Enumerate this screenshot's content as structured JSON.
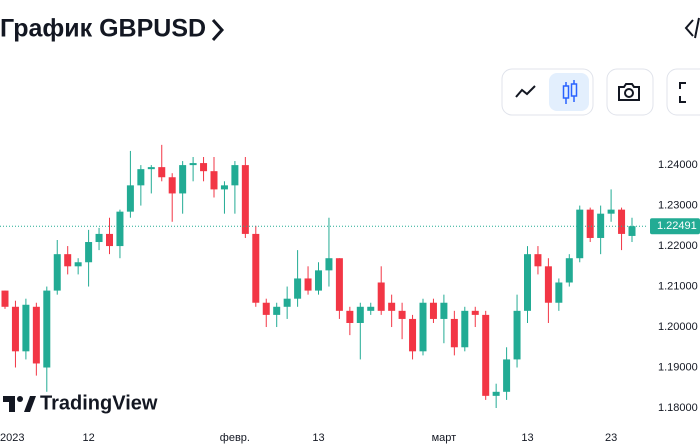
{
  "page": {
    "title": "График GBPUSD",
    "brand": "TradingView"
  },
  "chart_data": {
    "type": "candlestick",
    "categories": [
      "2023",
      null,
      null,
      null,
      null,
      null,
      null,
      null,
      "12",
      null,
      null,
      null,
      null,
      null,
      null,
      null,
      null,
      null,
      null,
      null,
      null,
      null,
      "февр.",
      null,
      null,
      null,
      null,
      null,
      null,
      null,
      "13",
      null,
      null,
      null,
      null,
      null,
      null,
      null,
      null,
      null,
      null,
      null,
      "март",
      null,
      null,
      null,
      null,
      null,
      null,
      null,
      "13",
      null,
      null,
      null,
      null,
      null,
      null,
      null,
      "23",
      null,
      null
    ],
    "open": [
      1.209,
      1.205,
      1.194,
      1.205,
      1.19,
      1.209,
      1.218,
      1.215,
      1.216,
      1.221,
      1.223,
      1.22,
      1.2285,
      1.235,
      1.239,
      1.2395,
      1.237,
      1.233,
      1.24,
      1.2405,
      1.2385,
      1.234,
      1.235,
      1.24,
      1.223,
      1.206,
      1.203,
      1.205,
      1.207,
      1.212,
      1.209,
      1.214,
      1.217,
      1.204,
      1.201,
      1.204,
      1.211,
      1.206,
      1.204,
      1.202,
      1.194,
      1.206,
      1.202,
      1.202,
      1.195,
      1.204,
      1.203,
      1.183,
      1.184,
      1.192,
      1.204,
      1.218,
      1.215,
      1.206,
      1.211,
      1.217,
      1.229,
      1.222,
      1.228,
      1.229,
      1.2225
    ],
    "high": [
      1.209,
      1.2065,
      1.207,
      1.206,
      1.21,
      1.2215,
      1.22,
      1.217,
      1.224,
      1.2245,
      1.227,
      1.229,
      1.2435,
      1.24,
      1.24,
      1.245,
      1.238,
      1.241,
      1.242,
      1.242,
      1.242,
      1.236,
      1.241,
      1.242,
      1.225,
      1.207,
      1.206,
      1.21,
      1.219,
      1.215,
      1.216,
      1.227,
      1.217,
      1.205,
      1.206,
      1.206,
      1.215,
      1.208,
      1.206,
      1.203,
      1.207,
      1.207,
      1.208,
      1.204,
      1.205,
      1.205,
      1.204,
      1.186,
      1.195,
      1.208,
      1.22,
      1.22,
      1.217,
      1.212,
      1.218,
      1.23,
      1.2295,
      1.23,
      1.234,
      1.2295,
      1.227
    ],
    "low": [
      1.2045,
      1.19,
      1.192,
      1.188,
      1.184,
      1.208,
      1.213,
      1.213,
      1.21,
      1.219,
      1.218,
      1.217,
      1.227,
      1.23,
      1.233,
      1.236,
      1.226,
      1.228,
      1.236,
      1.236,
      1.232,
      1.228,
      1.228,
      1.222,
      1.205,
      1.2,
      1.2,
      1.202,
      1.205,
      1.208,
      1.208,
      1.21,
      1.202,
      1.198,
      1.192,
      1.203,
      1.203,
      1.2,
      1.197,
      1.192,
      1.193,
      1.201,
      1.196,
      1.193,
      1.194,
      1.2,
      1.182,
      1.18,
      1.182,
      1.19,
      1.201,
      1.213,
      1.201,
      1.204,
      1.21,
      1.216,
      1.221,
      1.218,
      1.226,
      1.219,
      1.221
    ],
    "close": [
      1.205,
      1.194,
      1.2055,
      1.191,
      1.209,
      1.218,
      1.215,
      1.216,
      1.221,
      1.223,
      1.22,
      1.2285,
      1.235,
      1.239,
      1.2395,
      1.237,
      1.233,
      1.24,
      1.2405,
      1.2385,
      1.234,
      1.235,
      1.24,
      1.223,
      1.206,
      1.203,
      1.205,
      1.207,
      1.212,
      1.209,
      1.214,
      1.217,
      1.204,
      1.201,
      1.205,
      1.205,
      1.204,
      1.204,
      1.202,
      1.194,
      1.206,
      1.202,
      1.206,
      1.195,
      1.204,
      1.203,
      1.183,
      1.184,
      1.192,
      1.204,
      1.218,
      1.215,
      1.206,
      1.211,
      1.217,
      1.229,
      1.222,
      1.228,
      1.229,
      1.223,
      1.22491
    ],
    "up_color": "#22ab94",
    "down_color": "#f23645",
    "ylim": [
      1.1758,
      1.2462
    ],
    "yticks": [
      {
        "value": 1.24,
        "label": "1.24000"
      },
      {
        "value": 1.23,
        "label": "1.23000"
      },
      {
        "value": 1.22,
        "label": "1.22000"
      },
      {
        "value": 1.21,
        "label": "1.21000"
      },
      {
        "value": 1.2,
        "label": "1.20000"
      },
      {
        "value": 1.19,
        "label": "1.19000"
      },
      {
        "value": 1.18,
        "label": "1.18000"
      }
    ],
    "current_price": 1.22491,
    "current_price_color": "#22ab94"
  }
}
